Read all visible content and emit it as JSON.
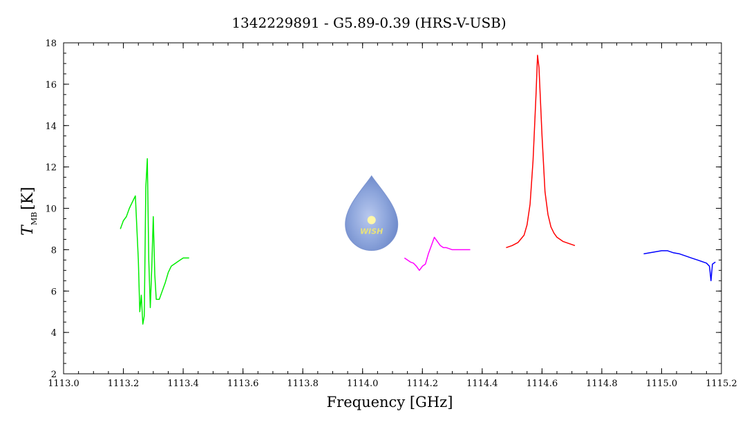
{
  "chart_data": {
    "type": "line",
    "title": "1342229891 - G5.89-0.39 (HRS-V-USB)",
    "xlabel": "Frequency [GHz]",
    "ylabel_main": "T",
    "ylabel_sub": "MB",
    "ylabel_unit": "[K]",
    "xlim": [
      1113.0,
      1115.2
    ],
    "ylim": [
      2,
      18
    ],
    "x_ticks": [
      1113.0,
      1113.2,
      1113.4,
      1113.6,
      1113.8,
      1114.0,
      1114.2,
      1114.4,
      1114.6,
      1114.8,
      1115.0,
      1115.2
    ],
    "x_tick_labels": [
      "1113.0",
      "1113.2",
      "1113.4",
      "1113.6",
      "1113.8",
      "1114.0",
      "1114.2",
      "1114.4",
      "1114.6",
      "1114.8",
      "1115.0",
      "1115.2"
    ],
    "y_ticks": [
      2,
      4,
      6,
      8,
      10,
      12,
      14,
      16,
      18
    ],
    "y_tick_labels": [
      "2",
      "4",
      "6",
      "8",
      "10",
      "12",
      "14",
      "16",
      "18"
    ],
    "grid": false,
    "series": [
      {
        "color": "#00ee00",
        "points": [
          [
            1113.19,
            9.0
          ],
          [
            1113.2,
            9.4
          ],
          [
            1113.21,
            9.6
          ],
          [
            1113.22,
            10.0
          ],
          [
            1113.23,
            10.3
          ],
          [
            1113.24,
            10.6
          ],
          [
            1113.25,
            7.5
          ],
          [
            1113.255,
            5.0
          ],
          [
            1113.26,
            5.8
          ],
          [
            1113.265,
            4.4
          ],
          [
            1113.27,
            4.8
          ],
          [
            1113.275,
            11.0
          ],
          [
            1113.28,
            12.4
          ],
          [
            1113.285,
            7.5
          ],
          [
            1113.29,
            5.2
          ],
          [
            1113.295,
            7.2
          ],
          [
            1113.3,
            9.6
          ],
          [
            1113.305,
            6.8
          ],
          [
            1113.31,
            5.6
          ],
          [
            1113.32,
            5.6
          ],
          [
            1113.33,
            6.0
          ],
          [
            1113.34,
            6.4
          ],
          [
            1113.35,
            6.9
          ],
          [
            1113.36,
            7.2
          ],
          [
            1113.37,
            7.3
          ],
          [
            1113.38,
            7.4
          ],
          [
            1113.39,
            7.5
          ],
          [
            1113.4,
            7.6
          ],
          [
            1113.42,
            7.6
          ]
        ]
      },
      {
        "color": "#ff00ff",
        "points": [
          [
            1114.14,
            7.6
          ],
          [
            1114.15,
            7.5
          ],
          [
            1114.16,
            7.4
          ],
          [
            1114.17,
            7.35
          ],
          [
            1114.18,
            7.2
          ],
          [
            1114.19,
            7.0
          ],
          [
            1114.2,
            7.2
          ],
          [
            1114.21,
            7.3
          ],
          [
            1114.22,
            7.8
          ],
          [
            1114.23,
            8.2
          ],
          [
            1114.24,
            8.6
          ],
          [
            1114.25,
            8.4
          ],
          [
            1114.26,
            8.2
          ],
          [
            1114.27,
            8.1
          ],
          [
            1114.28,
            8.1
          ],
          [
            1114.3,
            8.0
          ],
          [
            1114.32,
            8.0
          ],
          [
            1114.34,
            8.0
          ],
          [
            1114.36,
            8.0
          ]
        ]
      },
      {
        "color": "#ff0000",
        "points": [
          [
            1114.48,
            8.1
          ],
          [
            1114.5,
            8.2
          ],
          [
            1114.52,
            8.35
          ],
          [
            1114.54,
            8.7
          ],
          [
            1114.55,
            9.2
          ],
          [
            1114.56,
            10.2
          ],
          [
            1114.57,
            12.3
          ],
          [
            1114.58,
            15.5
          ],
          [
            1114.585,
            17.4
          ],
          [
            1114.59,
            16.8
          ],
          [
            1114.6,
            13.5
          ],
          [
            1114.61,
            10.8
          ],
          [
            1114.62,
            9.7
          ],
          [
            1114.63,
            9.1
          ],
          [
            1114.64,
            8.8
          ],
          [
            1114.65,
            8.6
          ],
          [
            1114.67,
            8.4
          ],
          [
            1114.69,
            8.3
          ],
          [
            1114.71,
            8.2
          ]
        ]
      },
      {
        "color": "#0000ff",
        "points": [
          [
            1114.94,
            7.8
          ],
          [
            1114.96,
            7.85
          ],
          [
            1114.98,
            7.9
          ],
          [
            1115.0,
            7.95
          ],
          [
            1115.02,
            7.95
          ],
          [
            1115.04,
            7.85
          ],
          [
            1115.06,
            7.8
          ],
          [
            1115.08,
            7.7
          ],
          [
            1115.1,
            7.6
          ],
          [
            1115.12,
            7.5
          ],
          [
            1115.14,
            7.4
          ],
          [
            1115.15,
            7.35
          ],
          [
            1115.16,
            7.2
          ],
          [
            1115.165,
            6.5
          ],
          [
            1115.17,
            7.3
          ],
          [
            1115.18,
            7.4
          ]
        ]
      }
    ]
  },
  "logo": {
    "text": "WISH",
    "x": 1114.03,
    "y": 9.5
  }
}
